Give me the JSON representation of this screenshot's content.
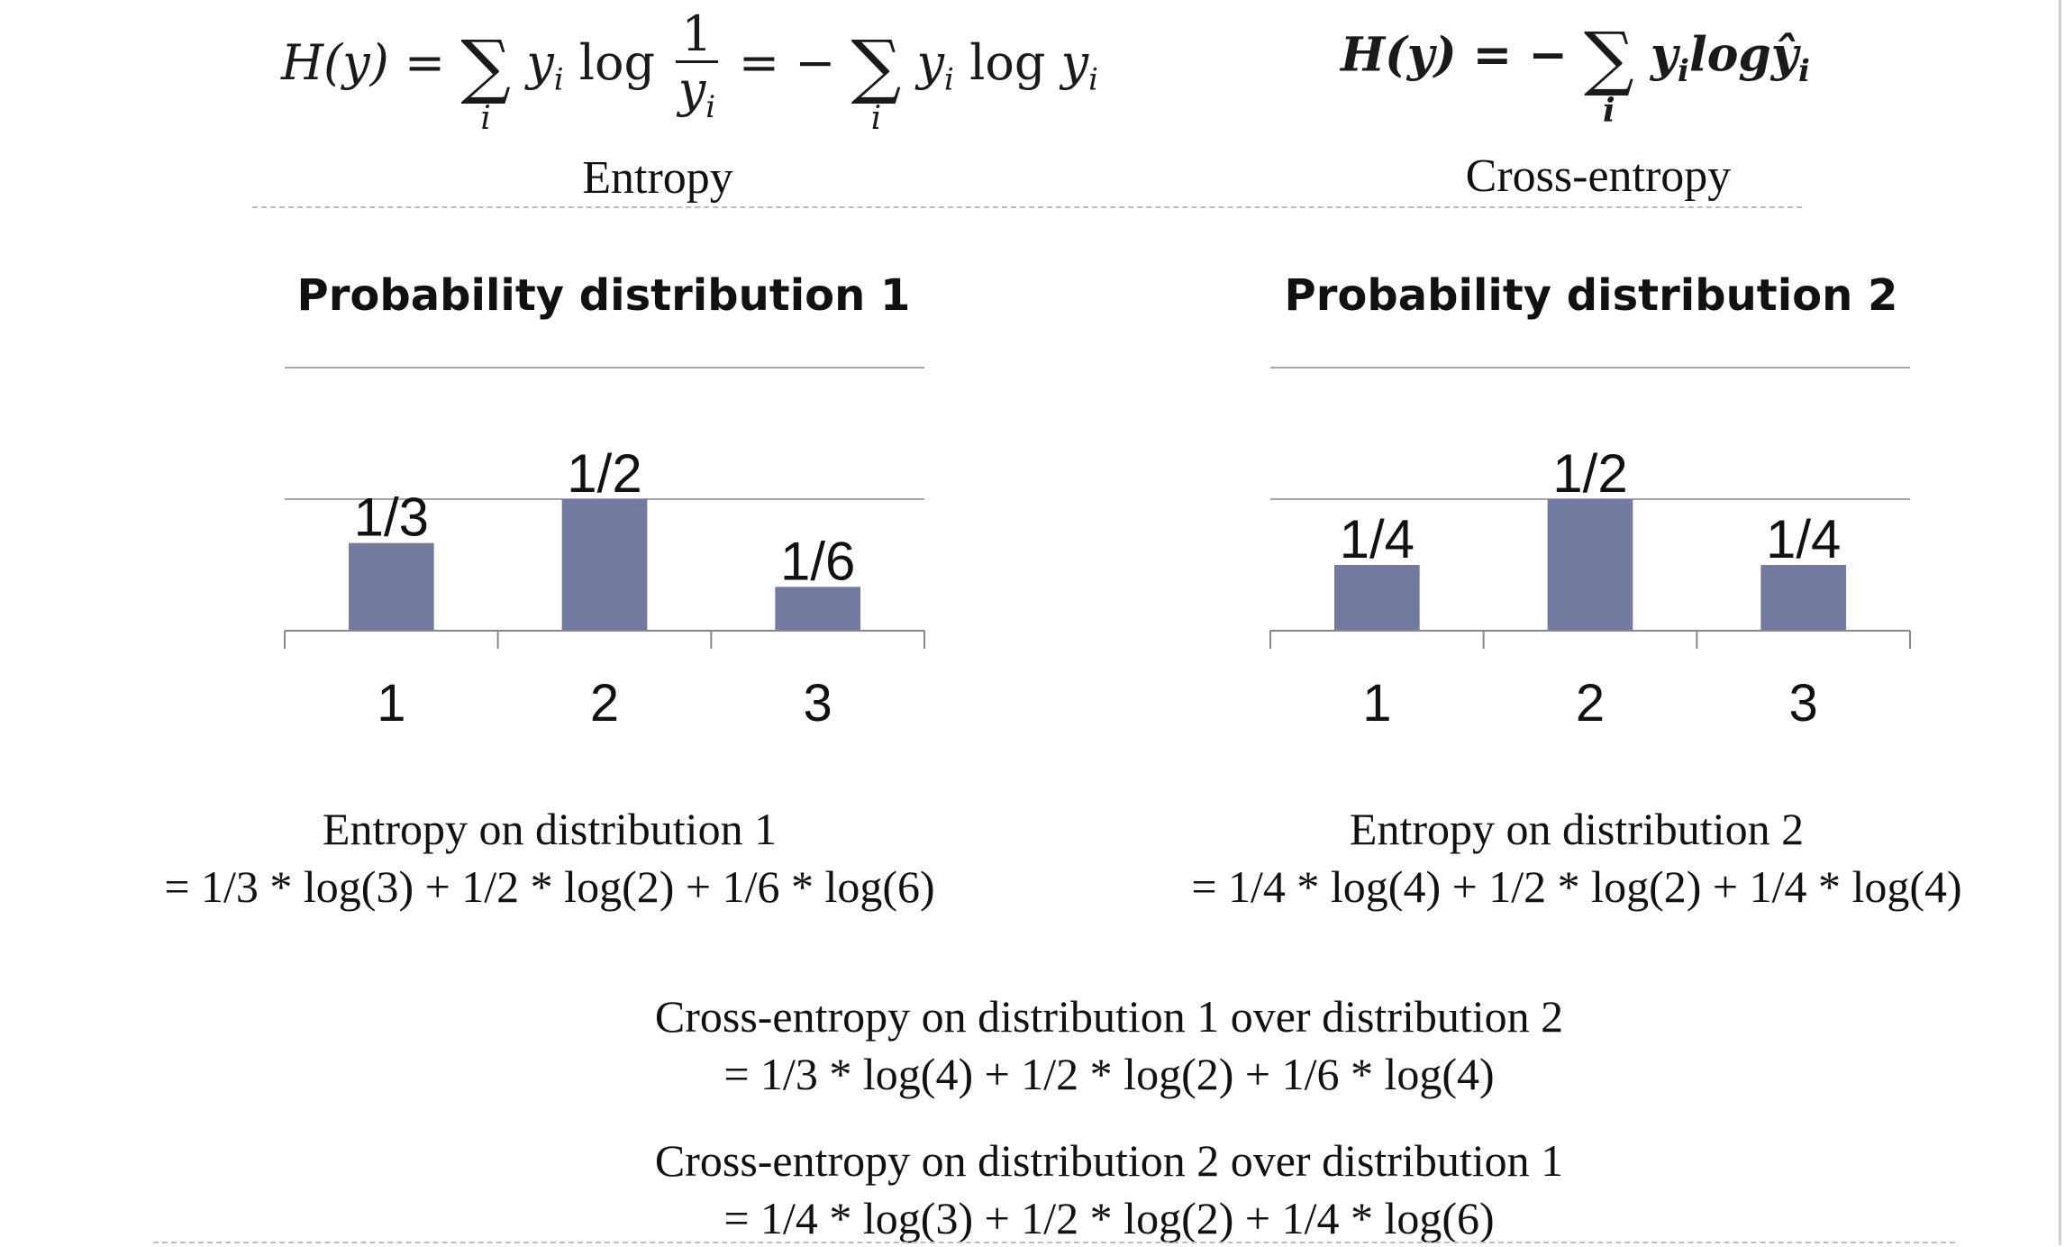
{
  "formulas": {
    "entropy": {
      "lhs": "H(y) =",
      "term1": "y",
      "sub_i": "i",
      "log": "log",
      "frac_num": "1",
      "frac_den": "y",
      "mid": "= −",
      "term2": "y",
      "log2": "log",
      "term3": "y",
      "caption": "Entropy"
    },
    "cross_entropy": {
      "lhs": "H(y) = −",
      "term": "y",
      "sub_i": "i",
      "log": "log",
      "hat": "ŷ",
      "caption": "Cross-entropy"
    }
  },
  "chart_data": [
    {
      "type": "bar",
      "title": "Probability distribution 1",
      "categories": [
        "1",
        "2",
        "3"
      ],
      "values": [
        0.3333,
        0.5,
        0.1667
      ],
      "data_labels": [
        "1/3",
        "1/2",
        "1/6"
      ],
      "ylim": [
        0,
        1
      ],
      "grid": true,
      "color": "#737a9f"
    },
    {
      "type": "bar",
      "title": "Probability distribution 2",
      "categories": [
        "1",
        "2",
        "3"
      ],
      "values": [
        0.25,
        0.5,
        0.25
      ],
      "data_labels": [
        "1/4",
        "1/2",
        "1/4"
      ],
      "ylim": [
        0,
        1
      ],
      "grid": true,
      "color": "#737a9f"
    }
  ],
  "explanations": {
    "entropy1_title": "Entropy on distribution 1",
    "entropy1_expr": "= 1/3 * log(3) + 1/2 * log(2) + 1/6 * log(6)",
    "entropy2_title": "Entropy on distribution 2",
    "entropy2_expr": "= 1/4 * log(4) + 1/2 * log(2) + 1/4 * log(4)",
    "cross12_title": "Cross-entropy on distribution 1 over distribution 2",
    "cross12_expr": "= 1/3 * log(4) + 1/2 * log(2) + 1/6 * log(4)",
    "cross21_title": "Cross-entropy on distribution 2 over distribution 1",
    "cross21_expr": "= 1/4 * log(3) + 1/2 * log(2) + 1/4 * log(6)"
  }
}
